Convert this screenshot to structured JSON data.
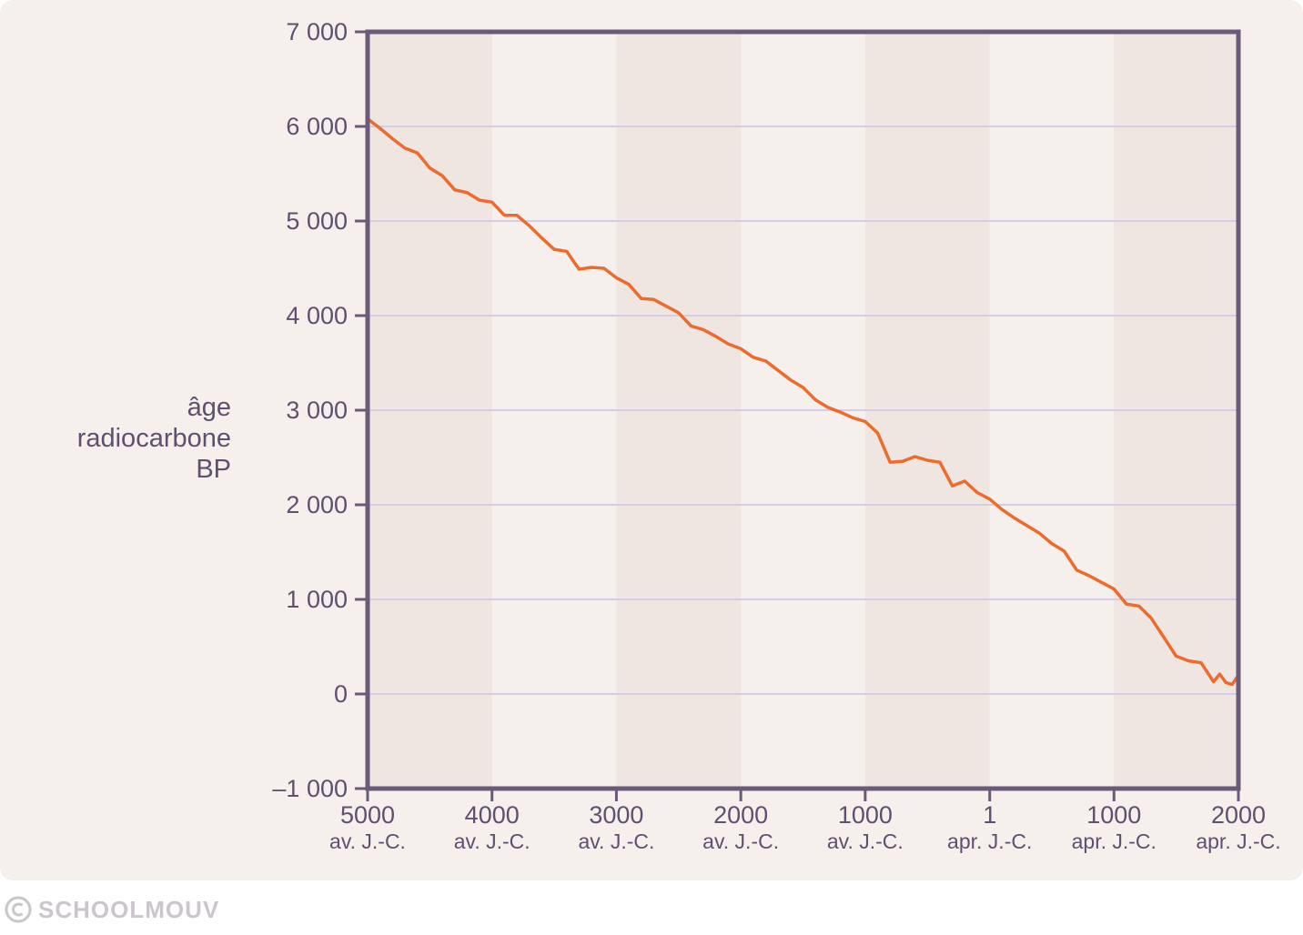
{
  "chart_data": {
    "type": "line",
    "ylabel_lines": [
      "âge",
      "radiocarbone",
      "BP"
    ],
    "ylim": [
      -1000,
      7000
    ],
    "yticks": [
      -1000,
      0,
      1000,
      2000,
      3000,
      4000,
      5000,
      6000,
      7000
    ],
    "ytick_labels": [
      "–1 000",
      "0",
      "1 000",
      "2 000",
      "3 000",
      "4 000",
      "5 000",
      "6 000",
      "7 000"
    ],
    "xlim": [
      -5000,
      2000
    ],
    "xticks": [
      {
        "value": -5000,
        "top": "5000",
        "bottom": "av. J.-C."
      },
      {
        "value": -4000,
        "top": "4000",
        "bottom": "av. J.-C."
      },
      {
        "value": -3000,
        "top": "3000",
        "bottom": "av. J.-C."
      },
      {
        "value": -2000,
        "top": "2000",
        "bottom": "av. J.-C."
      },
      {
        "value": -1000,
        "top": "1000",
        "bottom": "av. J.-C."
      },
      {
        "value": 1,
        "top": "1",
        "bottom": "apr. J.-C."
      },
      {
        "value": 1000,
        "top": "1000",
        "bottom": "apr. J.-C."
      },
      {
        "value": 2000,
        "top": "2000",
        "bottom": "apr. J.-C."
      }
    ],
    "grid": true,
    "series": [
      {
        "color": "#ec6b2d",
        "points": [
          [
            -5000,
            6080
          ],
          [
            -4900,
            5980
          ],
          [
            -4800,
            5870
          ],
          [
            -4700,
            5770
          ],
          [
            -4600,
            5720
          ],
          [
            -4500,
            5560
          ],
          [
            -4400,
            5480
          ],
          [
            -4300,
            5330
          ],
          [
            -4200,
            5300
          ],
          [
            -4100,
            5220
          ],
          [
            -4000,
            5200
          ],
          [
            -3900,
            5060
          ],
          [
            -3800,
            5060
          ],
          [
            -3700,
            4950
          ],
          [
            -3600,
            4820
          ],
          [
            -3500,
            4700
          ],
          [
            -3400,
            4680
          ],
          [
            -3300,
            4490
          ],
          [
            -3200,
            4510
          ],
          [
            -3100,
            4500
          ],
          [
            -3000,
            4400
          ],
          [
            -2900,
            4330
          ],
          [
            -2800,
            4180
          ],
          [
            -2700,
            4170
          ],
          [
            -2600,
            4100
          ],
          [
            -2500,
            4030
          ],
          [
            -2400,
            3890
          ],
          [
            -2300,
            3850
          ],
          [
            -2200,
            3780
          ],
          [
            -2100,
            3700
          ],
          [
            -2000,
            3650
          ],
          [
            -1900,
            3560
          ],
          [
            -1800,
            3520
          ],
          [
            -1700,
            3420
          ],
          [
            -1600,
            3320
          ],
          [
            -1500,
            3240
          ],
          [
            -1400,
            3110
          ],
          [
            -1300,
            3030
          ],
          [
            -1200,
            2980
          ],
          [
            -1100,
            2920
          ],
          [
            -1000,
            2880
          ],
          [
            -900,
            2760
          ],
          [
            -800,
            2450
          ],
          [
            -700,
            2460
          ],
          [
            -600,
            2510
          ],
          [
            -500,
            2470
          ],
          [
            -400,
            2450
          ],
          [
            -300,
            2200
          ],
          [
            -200,
            2250
          ],
          [
            -100,
            2130
          ],
          [
            1,
            2060
          ],
          [
            100,
            1950
          ],
          [
            200,
            1860
          ],
          [
            300,
            1780
          ],
          [
            400,
            1700
          ],
          [
            500,
            1590
          ],
          [
            600,
            1510
          ],
          [
            700,
            1310
          ],
          [
            800,
            1250
          ],
          [
            900,
            1180
          ],
          [
            1000,
            1110
          ],
          [
            1100,
            950
          ],
          [
            1200,
            930
          ],
          [
            1300,
            800
          ],
          [
            1400,
            600
          ],
          [
            1500,
            400
          ],
          [
            1600,
            350
          ],
          [
            1700,
            330
          ],
          [
            1750,
            230
          ],
          [
            1800,
            130
          ],
          [
            1850,
            210
          ],
          [
            1900,
            120
          ],
          [
            1950,
            100
          ],
          [
            2000,
            200
          ]
        ]
      }
    ]
  },
  "watermark": {
    "text": "SCHOOLMOUV",
    "icon": "copyright-icon"
  },
  "colors": {
    "background": "#f5f0ec",
    "band": "#efe6e1",
    "grid": "#d4cde6",
    "axis": "#6a5a7a",
    "text": "#5e5070",
    "line": "#ec6b2d"
  }
}
